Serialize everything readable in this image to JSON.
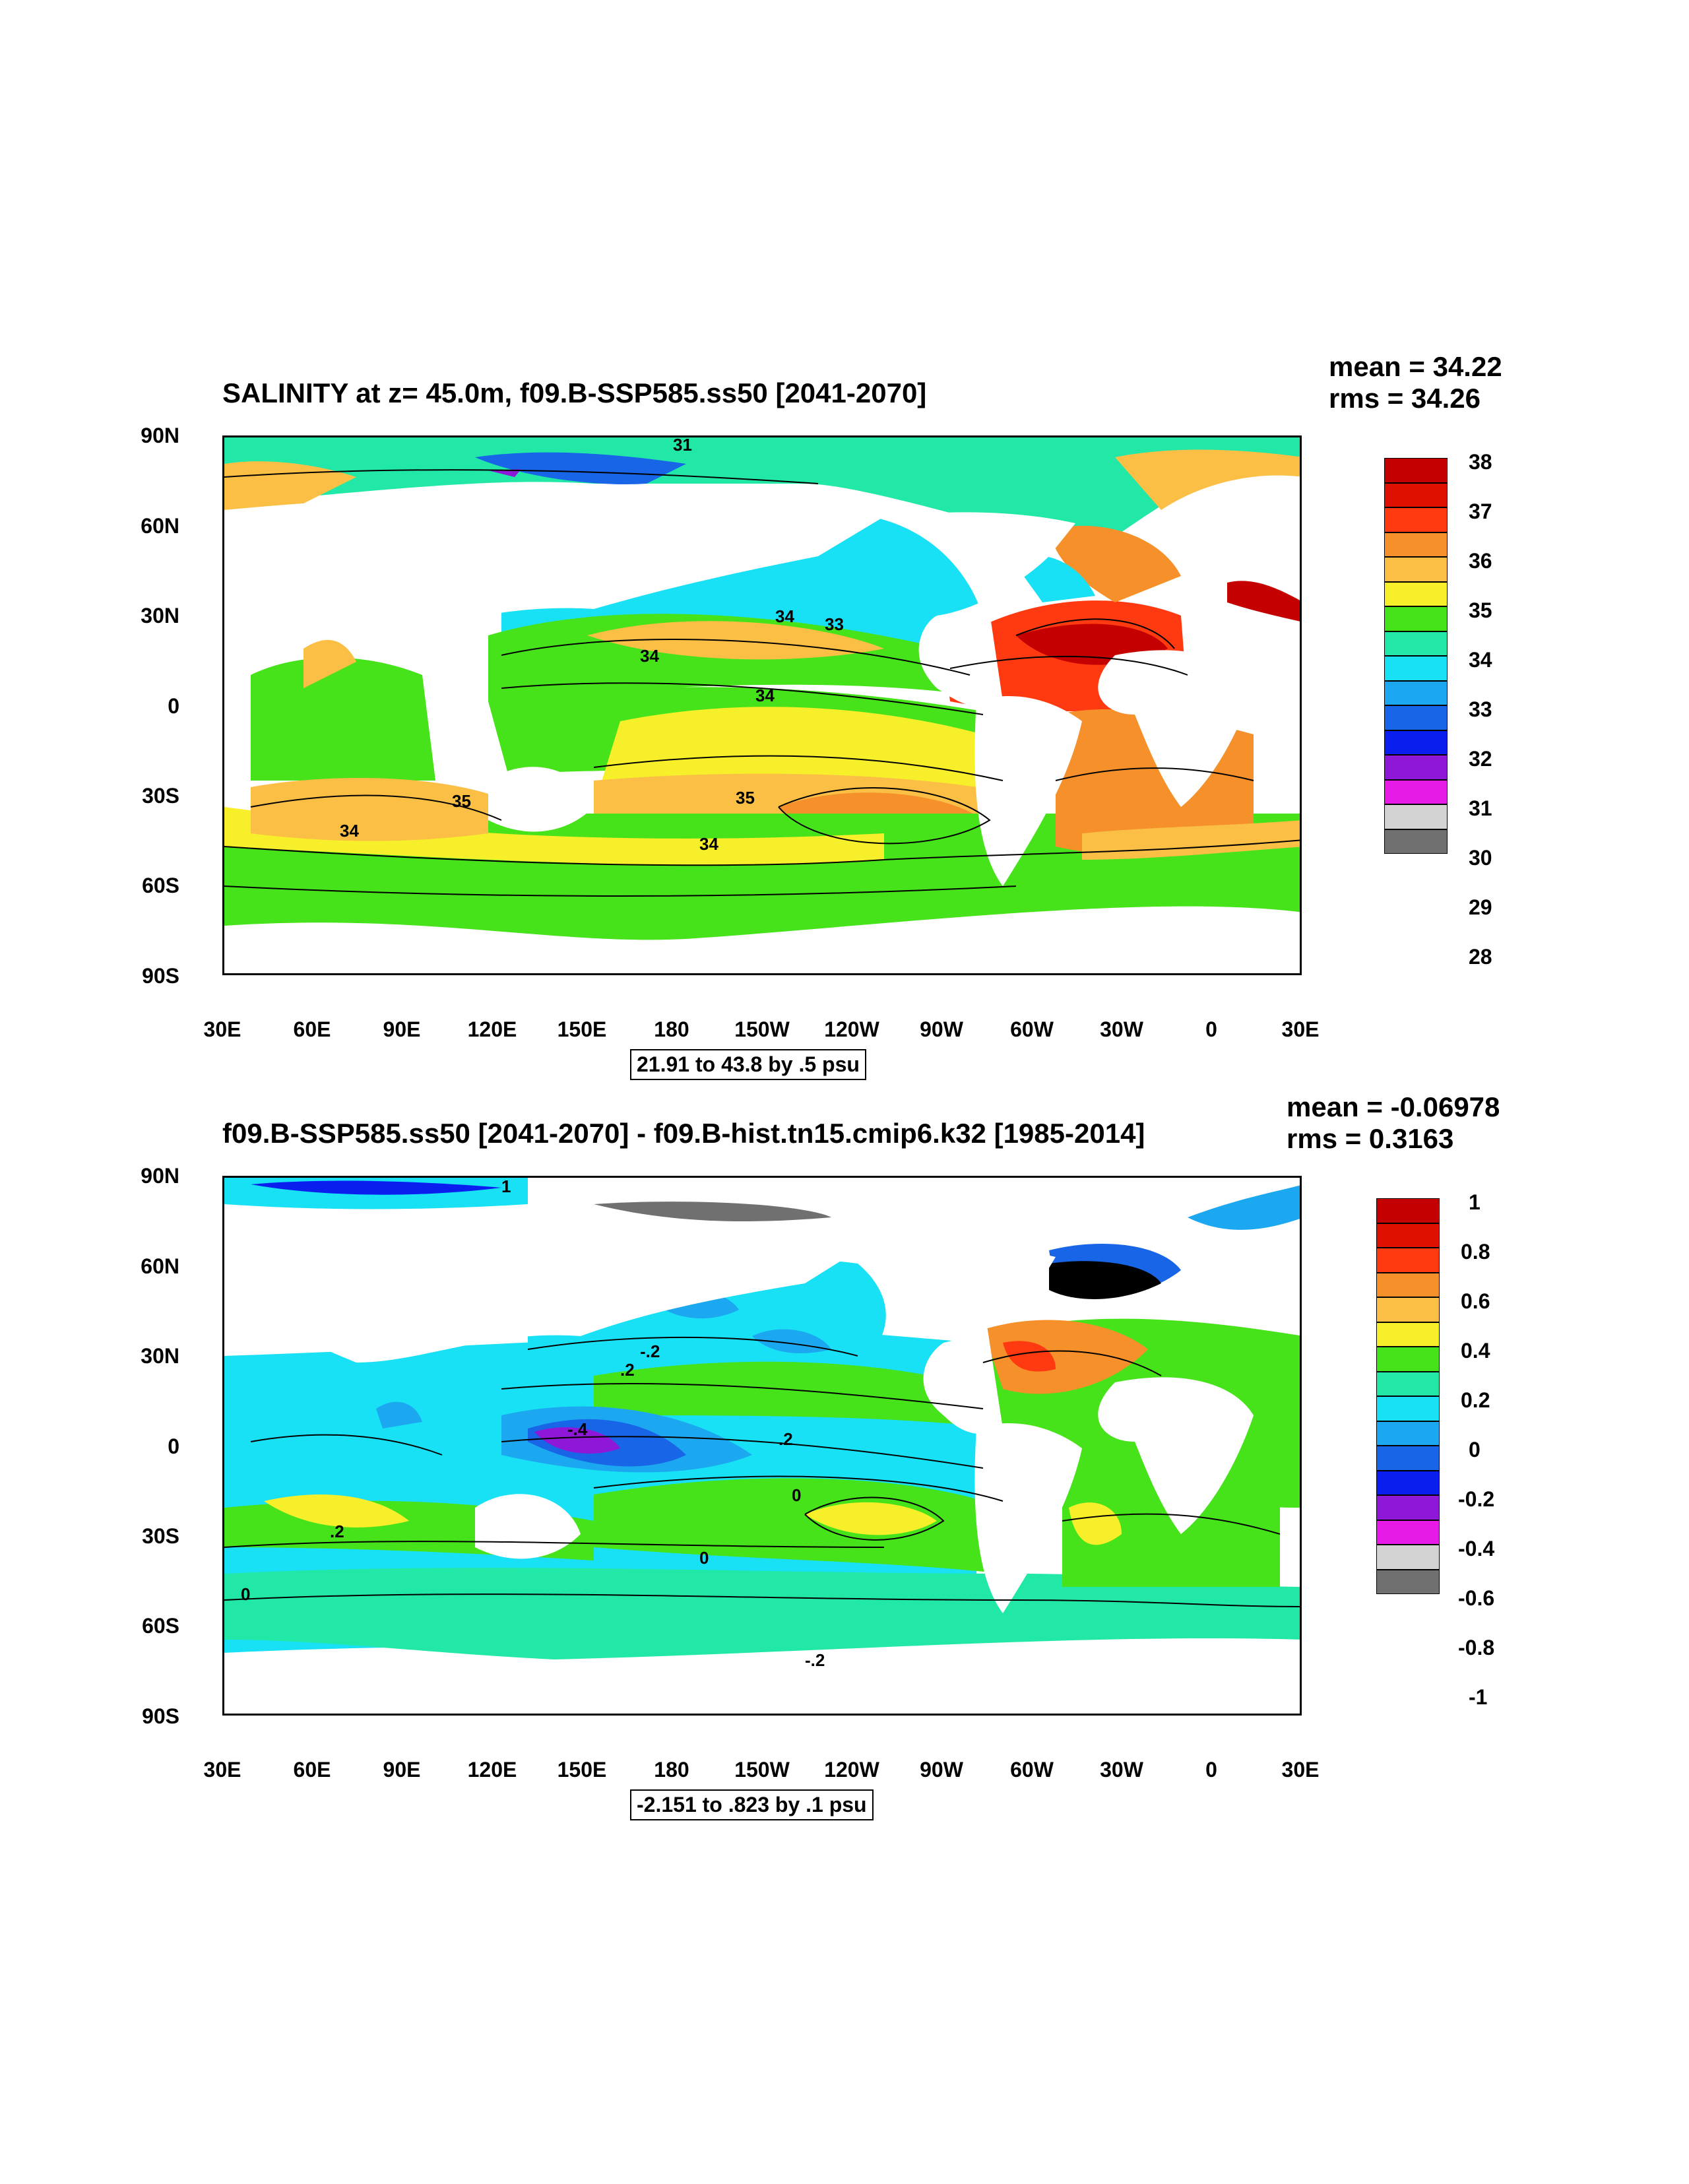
{
  "panels": [
    {
      "title": "SALINITY at z=  45.0m, f09.B-SSP585.ss50 [2041-2070]",
      "mean": "mean = 34.22",
      "rms": "rms = 34.26",
      "contour_info": "21.91 to 43.8 by .5 psu",
      "colorbar_labels": [
        "38",
        "37",
        "36",
        "35",
        "34",
        "33",
        "32",
        "31",
        "30",
        "29",
        "28"
      ],
      "contour_labels": [
        "31",
        "34",
        "33",
        "34",
        "34",
        "35",
        "35",
        "34",
        "34"
      ]
    },
    {
      "title": "f09.B-SSP585.ss50 [2041-2070] - f09.B-hist.tn15.cmip6.k32 [1985-2014]",
      "mean": "mean = -0.06978",
      "rms": "rms = 0.3163",
      "contour_info": "-2.151 to .823 by .1 psu",
      "colorbar_labels": [
        "1",
        "0.8",
        "0.6",
        "0.4",
        "0.2",
        "0",
        "-0.2",
        "-0.4",
        "-0.6",
        "-0.8",
        "-1"
      ],
      "contour_labels": [
        "1",
        "-.2",
        ".2",
        "-.4",
        ".2",
        "0",
        ".2",
        "0",
        "0",
        "-.2"
      ]
    }
  ],
  "y_axis_labels": [
    "90N",
    "60N",
    "30N",
    "0",
    "30S",
    "60S",
    "90S"
  ],
  "x_axis_labels": [
    "30E",
    "60E",
    "90E",
    "120E",
    "150E",
    "180",
    "150W",
    "120W",
    "90W",
    "60W",
    "30W",
    "0",
    "30E"
  ],
  "colors": {
    "colorbar_fill": [
      "#c40000",
      "#e01000",
      "#ff3a10",
      "#f5902a",
      "#fbbf46",
      "#f7ef2a",
      "#46e31a",
      "#21e8a6",
      "#18e0f5",
      "#1ca8f0",
      "#1865e8",
      "#0a1ef0",
      "#8f17d8",
      "#e81ae8",
      "#d2d2d2",
      "#707070"
    ]
  }
}
